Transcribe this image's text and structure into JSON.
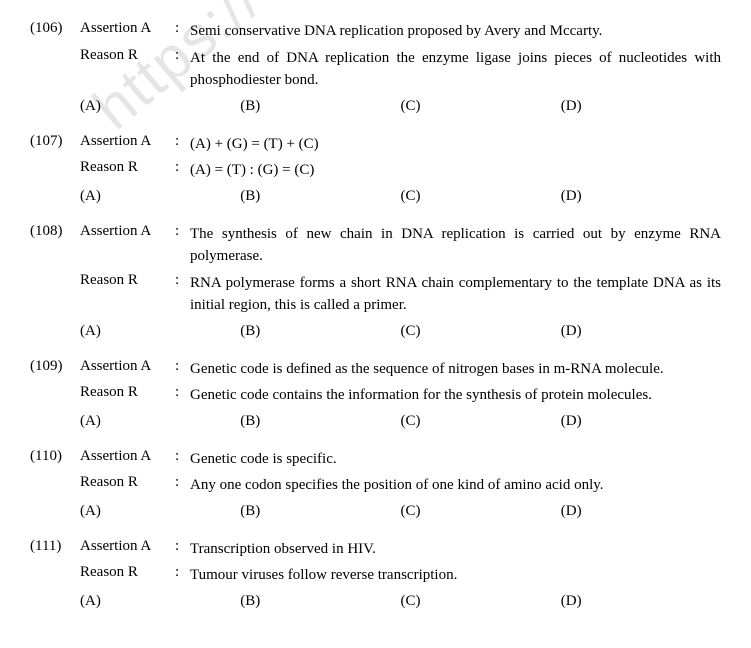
{
  "watermark": "https://www.stu",
  "options": {
    "a": "(A)",
    "b": "(B)",
    "c": "(C)",
    "d": "(D)"
  },
  "labels": {
    "assertion": "Assertion A",
    "reason": "Reason R",
    "colon": ":"
  },
  "questions": [
    {
      "num": "(106)",
      "assertion": "Semi conservative DNA replication proposed by Avery and Mccarty.",
      "reason": "At the end of DNA replication the enzyme ligase joins pieces of nucleotides with phosphodiester bond."
    },
    {
      "num": "(107)",
      "assertion": "(A) + (G) =  (T) + (C)",
      "reason": "(A) = (T) :  (G) = (C)"
    },
    {
      "num": "(108)",
      "assertion": "The synthesis of new chain in DNA replication is carried out by enzyme RNA polymerase.",
      "reason": "RNA polymerase forms a short RNA chain complementary to the template DNA as its initial region, this is called a primer."
    },
    {
      "num": "(109)",
      "assertion": "Genetic code is defined as the sequence of nitrogen bases in m-RNA molecule.",
      "reason": "Genetic code contains the information for the synthesis of protein molecules."
    },
    {
      "num": "(110)",
      "assertion": "Genetic code is specific.",
      "reason": "Any one codon specifies the position of one kind of amino acid only."
    },
    {
      "num": "(111)",
      "assertion": "Transcription observed in HIV.",
      "reason": "Tumour viruses follow reverse transcription."
    }
  ]
}
